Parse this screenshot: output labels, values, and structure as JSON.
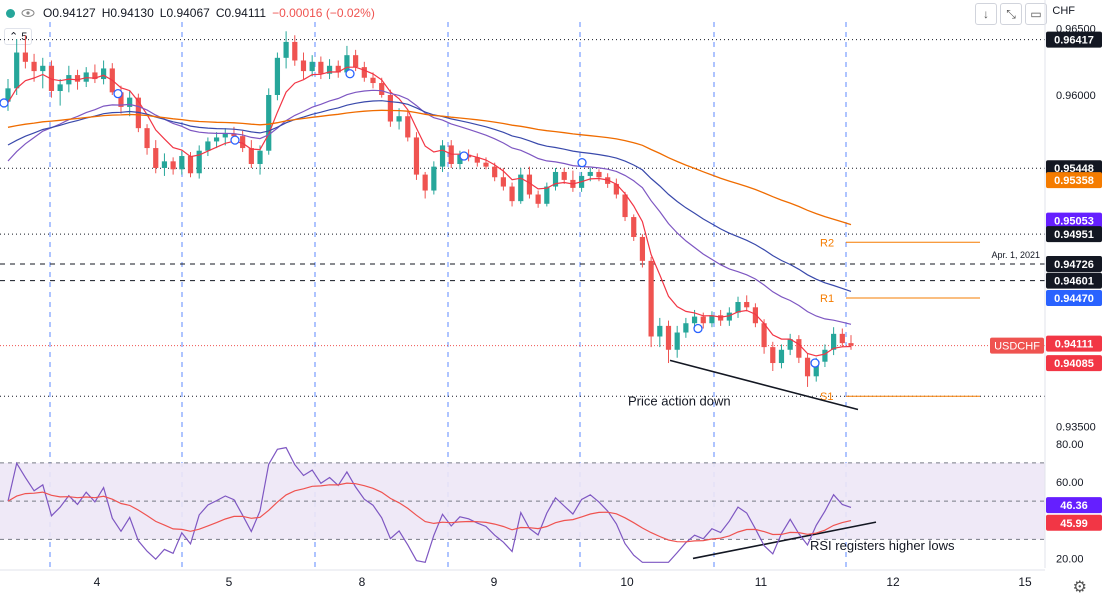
{
  "header": {
    "ohlc_open": "O0.94127",
    "ohlc_high": "H0.94130",
    "ohlc_low": "L0.94067",
    "ohlc_close": "C0.94111",
    "ohlc_change": "−0.00016 (−0.02%)",
    "interval": "5",
    "currency": "CHF"
  },
  "colors": {
    "bull": "#26a69a",
    "bear": "#ef5350",
    "ma_red": "#f23645",
    "ma_blue": "#3949ab",
    "ma_purple": "#7e57c2",
    "ma_orange": "#ef6c00",
    "rsi": "#7e57c2",
    "rsi_band": "#ede7f6"
  },
  "chart_data": [
    {
      "type": "candlestick",
      "symbol": "USDCHF",
      "ylim": [
        0.934,
        0.9655
      ],
      "x_ticks": [
        "4",
        "5",
        "8",
        "9",
        "10",
        "11",
        "12",
        "15"
      ],
      "y_ticks": [
        "0.96500",
        "0.96000",
        "0.93500"
      ],
      "price_labels": [
        {
          "text": "0.96417",
          "value": 0.96417,
          "style": "dark"
        },
        {
          "text": "0.95448",
          "value": 0.95448,
          "style": "dark"
        },
        {
          "text": "0.95358",
          "value": 0.95358,
          "style": "orange"
        },
        {
          "text": "0.95053",
          "value": 0.95053,
          "style": "purple"
        },
        {
          "text": "0.94951",
          "value": 0.94951,
          "style": "dark"
        },
        {
          "text": "0.94726",
          "value": 0.94726,
          "style": "dark"
        },
        {
          "text": "0.94601",
          "value": 0.94601,
          "style": "dark"
        },
        {
          "text": "0.94470",
          "value": 0.9447,
          "style": "blue"
        },
        {
          "text": "0.94111",
          "value": 0.94111,
          "style": "red"
        },
        {
          "text": "0.94085",
          "value": 0.94085,
          "style": "red"
        }
      ],
      "symbol_label": "USDCHF",
      "pivots": [
        {
          "label": "R2",
          "value": 0.9489
        },
        {
          "label": "R1",
          "value": 0.9447
        },
        {
          "label": "S1",
          "value": 0.9373
        }
      ],
      "pivot_date": "Apr. 1, 2021",
      "annotation": "Price action down",
      "candles": [
        [
          0.9595,
          0.9612,
          0.9588,
          0.9605
        ],
        [
          0.9605,
          0.9642,
          0.96,
          0.9632
        ],
        [
          0.9632,
          0.9645,
          0.962,
          0.9625
        ],
        [
          0.9625,
          0.9631,
          0.961,
          0.9618
        ],
        [
          0.9618,
          0.9628,
          0.9605,
          0.9622
        ],
        [
          0.9622,
          0.9626,
          0.9598,
          0.9603
        ],
        [
          0.9603,
          0.9612,
          0.9592,
          0.9608
        ],
        [
          0.9608,
          0.9622,
          0.9602,
          0.9615
        ],
        [
          0.9615,
          0.9619,
          0.9604,
          0.961
        ],
        [
          0.961,
          0.9621,
          0.9606,
          0.9617
        ],
        [
          0.9617,
          0.9623,
          0.9609,
          0.9612
        ],
        [
          0.9612,
          0.9626,
          0.9608,
          0.962
        ],
        [
          0.962,
          0.9624,
          0.96,
          0.9602
        ],
        [
          0.9602,
          0.9607,
          0.9586,
          0.9591
        ],
        [
          0.9591,
          0.9603,
          0.9584,
          0.9598
        ],
        [
          0.9598,
          0.9601,
          0.9572,
          0.9575
        ],
        [
          0.9575,
          0.9578,
          0.9555,
          0.956
        ],
        [
          0.956,
          0.9566,
          0.9541,
          0.9545
        ],
        [
          0.9545,
          0.9556,
          0.9539,
          0.955
        ],
        [
          0.955,
          0.9553,
          0.954,
          0.9544
        ],
        [
          0.9544,
          0.9558,
          0.954,
          0.9554
        ],
        [
          0.9554,
          0.9557,
          0.9538,
          0.9541
        ],
        [
          0.9541,
          0.9562,
          0.9537,
          0.9558
        ],
        [
          0.9558,
          0.9568,
          0.9554,
          0.9565
        ],
        [
          0.9565,
          0.9572,
          0.956,
          0.9568
        ],
        [
          0.9568,
          0.9575,
          0.9562,
          0.9571
        ],
        [
          0.9571,
          0.9576,
          0.9565,
          0.9569
        ],
        [
          0.9569,
          0.9573,
          0.9557,
          0.956
        ],
        [
          0.956,
          0.9566,
          0.9545,
          0.9548
        ],
        [
          0.9548,
          0.9562,
          0.954,
          0.9558
        ],
        [
          0.9558,
          0.9605,
          0.9555,
          0.96
        ],
        [
          0.96,
          0.9632,
          0.9596,
          0.9628
        ],
        [
          0.9628,
          0.9648,
          0.962,
          0.964
        ],
        [
          0.964,
          0.9645,
          0.9622,
          0.9626
        ],
        [
          0.9626,
          0.9632,
          0.9612,
          0.9618
        ],
        [
          0.9618,
          0.963,
          0.9614,
          0.9625
        ],
        [
          0.9625,
          0.9629,
          0.9612,
          0.9616
        ],
        [
          0.9616,
          0.9627,
          0.9612,
          0.9622
        ],
        [
          0.9622,
          0.9626,
          0.9613,
          0.9617
        ],
        [
          0.9617,
          0.9637,
          0.9614,
          0.963
        ],
        [
          0.963,
          0.9634,
          0.9618,
          0.9621
        ],
        [
          0.9621,
          0.9625,
          0.961,
          0.9613
        ],
        [
          0.9613,
          0.9617,
          0.9605,
          0.9609
        ],
        [
          0.9609,
          0.9613,
          0.9598,
          0.96
        ],
        [
          0.96,
          0.9604,
          0.9576,
          0.958
        ],
        [
          0.958,
          0.959,
          0.9574,
          0.9584
        ],
        [
          0.9584,
          0.9588,
          0.9565,
          0.9568
        ],
        [
          0.9568,
          0.9572,
          0.9536,
          0.954
        ],
        [
          0.954,
          0.9542,
          0.9522,
          0.9528
        ],
        [
          0.9528,
          0.955,
          0.9525,
          0.9546
        ],
        [
          0.9546,
          0.9566,
          0.9542,
          0.9562
        ],
        [
          0.9562,
          0.9566,
          0.9545,
          0.9548
        ],
        [
          0.9548,
          0.9558,
          0.9544,
          0.9555
        ],
        [
          0.9555,
          0.9559,
          0.955,
          0.9553
        ],
        [
          0.9553,
          0.9556,
          0.9546,
          0.9549
        ],
        [
          0.9549,
          0.9553,
          0.9544,
          0.9546
        ],
        [
          0.9546,
          0.9549,
          0.9535,
          0.9538
        ],
        [
          0.9538,
          0.9545,
          0.9528,
          0.9531
        ],
        [
          0.9531,
          0.9534,
          0.9516,
          0.952
        ],
        [
          0.952,
          0.9545,
          0.9518,
          0.954
        ],
        [
          0.954,
          0.9546,
          0.9522,
          0.9525
        ],
        [
          0.9525,
          0.9528,
          0.9515,
          0.9518
        ],
        [
          0.9518,
          0.9534,
          0.9516,
          0.9531
        ],
        [
          0.9531,
          0.9545,
          0.9528,
          0.9542
        ],
        [
          0.9542,
          0.9545,
          0.9533,
          0.9536
        ],
        [
          0.9536,
          0.9543,
          0.9527,
          0.953
        ],
        [
          0.953,
          0.9542,
          0.9527,
          0.9539
        ],
        [
          0.9539,
          0.9545,
          0.9535,
          0.9542
        ],
        [
          0.9542,
          0.9544,
          0.9535,
          0.9538
        ],
        [
          0.9538,
          0.9541,
          0.953,
          0.9533
        ],
        [
          0.9533,
          0.9537,
          0.9522,
          0.9525
        ],
        [
          0.9525,
          0.9527,
          0.9505,
          0.9508
        ],
        [
          0.9508,
          0.951,
          0.949,
          0.9493
        ],
        [
          0.9493,
          0.9495,
          0.947,
          0.9475
        ],
        [
          0.9475,
          0.9478,
          0.941,
          0.9418
        ],
        [
          0.9418,
          0.9432,
          0.941,
          0.9426
        ],
        [
          0.9426,
          0.943,
          0.9398,
          0.9408
        ],
        [
          0.9408,
          0.9426,
          0.9402,
          0.9421
        ],
        [
          0.9421,
          0.9432,
          0.9417,
          0.9428
        ],
        [
          0.9428,
          0.9438,
          0.9423,
          0.9433
        ],
        [
          0.9433,
          0.9436,
          0.9424,
          0.9428
        ],
        [
          0.9428,
          0.9437,
          0.9425,
          0.9434
        ],
        [
          0.9434,
          0.9438,
          0.9426,
          0.943
        ],
        [
          0.943,
          0.944,
          0.9426,
          0.9436
        ],
        [
          0.9436,
          0.9448,
          0.9432,
          0.9444
        ],
        [
          0.9444,
          0.9449,
          0.9437,
          0.944
        ],
        [
          0.944,
          0.9443,
          0.9425,
          0.9428
        ],
        [
          0.9428,
          0.9431,
          0.9405,
          0.941
        ],
        [
          0.941,
          0.9414,
          0.9392,
          0.9398
        ],
        [
          0.9398,
          0.9412,
          0.9394,
          0.9408
        ],
        [
          0.9408,
          0.942,
          0.9404,
          0.9416
        ],
        [
          0.9416,
          0.9419,
          0.9398,
          0.9402
        ],
        [
          0.9402,
          0.9405,
          0.938,
          0.9388
        ],
        [
          0.9388,
          0.9402,
          0.9384,
          0.9399
        ],
        [
          0.9399,
          0.9412,
          0.9395,
          0.9408
        ],
        [
          0.9408,
          0.9425,
          0.9404,
          0.942
        ],
        [
          0.942,
          0.9424,
          0.941,
          0.9413
        ],
        [
          0.9413,
          0.9419,
          0.9408,
          0.9411
        ]
      ]
    },
    {
      "type": "line",
      "indicator": "RSI",
      "ylim": [
        15,
        82
      ],
      "y_ticks": [
        "80.00",
        "60.00",
        "20.00"
      ],
      "levels": [
        70,
        50,
        30
      ],
      "value_labels": [
        {
          "text": "46.36",
          "value": 46.36,
          "style": "purple"
        },
        {
          "text": "45.99",
          "value": 45.99,
          "style": "red"
        }
      ],
      "annotation": "RSI registers higher lows"
    }
  ]
}
